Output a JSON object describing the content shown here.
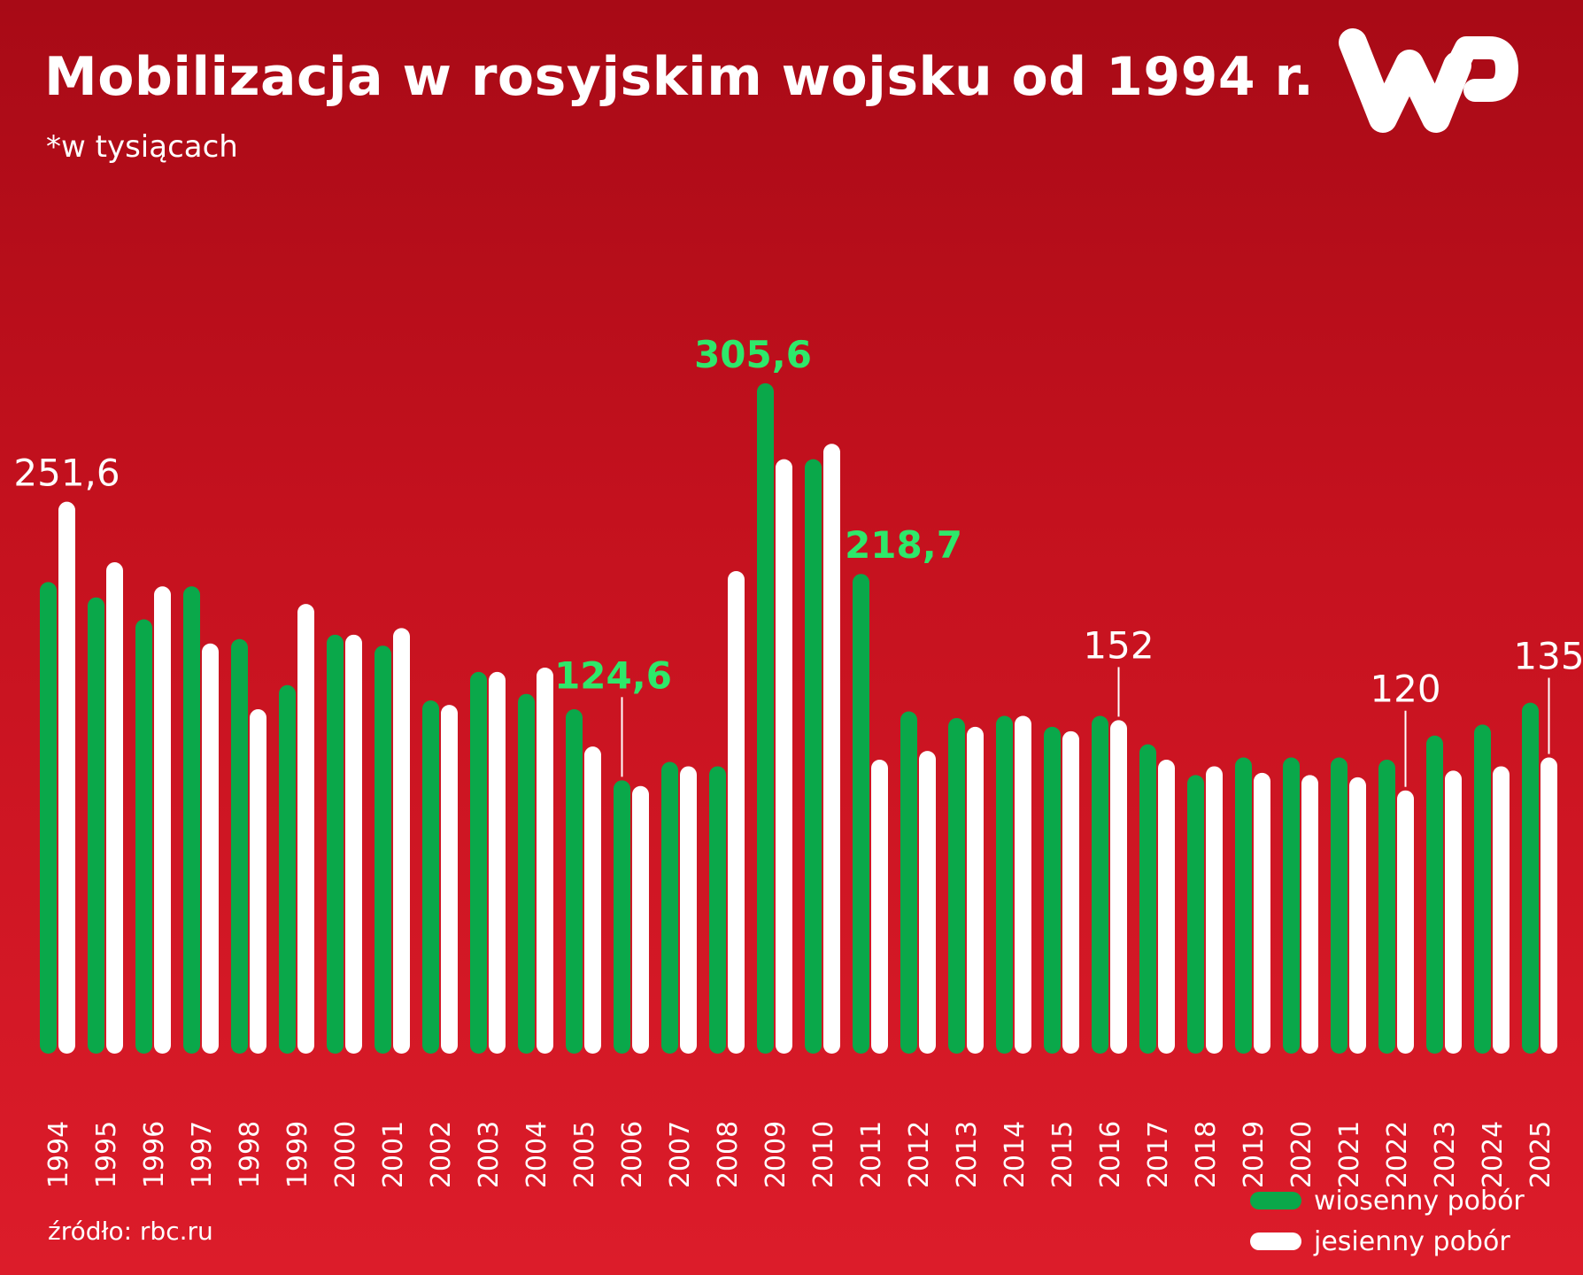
{
  "title": "Mobilizacja w rosyjskim wojsku od 1994 r.",
  "subtitle": "*w tysiącach",
  "logo_text": "WP",
  "source": "źródło: rbc.ru",
  "colors": {
    "spring": "#0aa84a",
    "autumn": "#ffffff",
    "label_green": "#2ee86a",
    "label_white": "#ffffff"
  },
  "legend": [
    {
      "label": "wiosenny pobór",
      "color": "#0aa84a"
    },
    {
      "label": "jesienny pobór",
      "color": "#ffffff"
    }
  ],
  "chart_data": {
    "type": "bar",
    "categories": [
      "1994",
      "1995",
      "1996",
      "1997",
      "1998",
      "1999",
      "2000",
      "2001",
      "2002",
      "2003",
      "2004",
      "2005",
      "2006",
      "2007",
      "2008",
      "2009",
      "2010",
      "2011",
      "2012",
      "2013",
      "2014",
      "2015",
      "2016",
      "2017",
      "2018",
      "2019",
      "2020",
      "2021",
      "2022",
      "2023",
      "2024",
      "2025"
    ],
    "series": [
      {
        "name": "wiosenny pobór",
        "values": [
          215,
          208,
          198,
          213,
          189,
          168,
          191,
          186,
          161,
          174,
          164,
          157,
          124.6,
          133,
          131,
          305.6,
          271,
          218.7,
          156,
          153,
          154,
          149,
          154,
          141,
          127,
          135,
          135,
          135,
          134,
          145,
          150,
          160
        ]
      },
      {
        "name": "jesienny pobór",
        "values": [
          251.6,
          224,
          213,
          187,
          157,
          205,
          191,
          194,
          159,
          174,
          176,
          140,
          122,
          131,
          220,
          271,
          278,
          134,
          138,
          149,
          154,
          147,
          152,
          134,
          131,
          128,
          127,
          126,
          120,
          129,
          131,
          135
        ]
      }
    ],
    "annotations": [
      {
        "category": "1994",
        "series": "jesienny pobór",
        "text": "251,6",
        "color": "white"
      },
      {
        "category": "2006",
        "series": "wiosenny pobór",
        "text": "124,6",
        "color": "green"
      },
      {
        "category": "2009",
        "series": "wiosenny pobór",
        "text": "305,6",
        "color": "green"
      },
      {
        "category": "2011",
        "series": "wiosenny pobór",
        "text": "218,7",
        "color": "green"
      },
      {
        "category": "2016",
        "series": "jesienny pobór",
        "text": "152",
        "color": "white"
      },
      {
        "category": "2022",
        "series": "jesienny pobór",
        "text": "120",
        "color": "white"
      },
      {
        "category": "2025",
        "series": "jesienny pobór",
        "text": "135",
        "color": "white"
      }
    ],
    "ylim": [
      0,
      310
    ],
    "grid": false,
    "legend_position": "bottom-right"
  }
}
